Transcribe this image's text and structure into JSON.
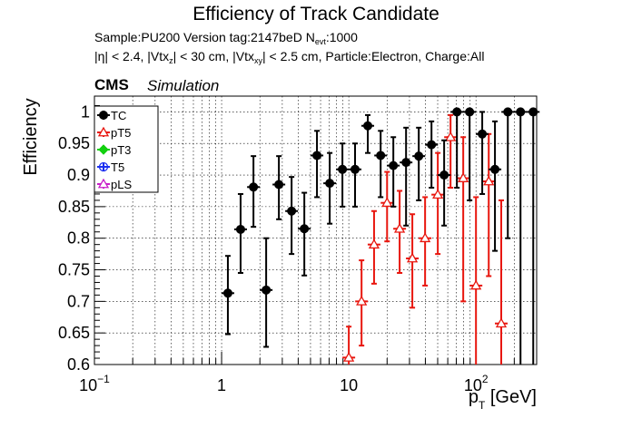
{
  "header": {
    "title": "Efficiency of Track Candidate",
    "sample_line": {
      "prefix": "Sample:PU200   Version tag:2147beD  N",
      "sub": "evt",
      "suffix": ":1000"
    },
    "cuts_line": {
      "p1": "|η| < 2.4, |Vtx",
      "s1": "z",
      "p2": "| < 30 cm, |Vtx",
      "s2": "xy",
      "p3": "| < 2.5 cm, Particle:Electron, Charge:All"
    },
    "cms_label": "CMS",
    "simulation_label": "Simulation"
  },
  "chart_data": {
    "type": "scatter",
    "x_scale": "log",
    "xlim": [
      0.1,
      300
    ],
    "ylim": [
      0.6,
      1.025
    ],
    "grid": true,
    "legend_position": "top-left",
    "xlabel": {
      "main": "p",
      "sub": "T",
      "rest": " [GeV]"
    },
    "ylabel": "Efficiency",
    "x_ticks": [
      {
        "value": 0.1,
        "base": "10",
        "exp": "−1"
      },
      {
        "value": 1,
        "base": "1",
        "exp": ""
      },
      {
        "value": 10,
        "base": "10",
        "exp": ""
      },
      {
        "value": 100,
        "base": "10",
        "exp": "2"
      }
    ],
    "y_ticks": [
      "0.6",
      "0.65",
      "0.7",
      "0.75",
      "0.8",
      "0.85",
      "0.9",
      "0.95",
      "1"
    ],
    "legend": [
      "TC",
      "pT5",
      "pT3",
      "T5",
      "pLS"
    ],
    "series": [
      {
        "name": "TC",
        "color": "#000000",
        "marker": "filled-circle",
        "points": [
          {
            "x": 1.12,
            "y": 0.713,
            "ylo": 0.648,
            "yhi": 0.772
          },
          {
            "x": 1.41,
            "y": 0.814,
            "ylo": 0.745,
            "yhi": 0.87
          },
          {
            "x": 1.78,
            "y": 0.881,
            "ylo": 0.818,
            "yhi": 0.93
          },
          {
            "x": 2.24,
            "y": 0.718,
            "ylo": 0.628,
            "yhi": 0.8
          },
          {
            "x": 2.82,
            "y": 0.885,
            "ylo": 0.83,
            "yhi": 0.93
          },
          {
            "x": 3.55,
            "y": 0.843,
            "ylo": 0.775,
            "yhi": 0.897
          },
          {
            "x": 4.47,
            "y": 0.815,
            "ylo": 0.741,
            "yhi": 0.872
          },
          {
            "x": 5.62,
            "y": 0.931,
            "ylo": 0.865,
            "yhi": 0.97
          },
          {
            "x": 7.08,
            "y": 0.887,
            "ylo": 0.823,
            "yhi": 0.935
          },
          {
            "x": 8.91,
            "y": 0.909,
            "ylo": 0.85,
            "yhi": 0.95
          },
          {
            "x": 11.2,
            "y": 0.909,
            "ylo": 0.85,
            "yhi": 0.95
          },
          {
            "x": 14.1,
            "y": 0.978,
            "ylo": 0.935,
            "yhi": 0.995
          },
          {
            "x": 17.8,
            "y": 0.931,
            "ylo": 0.865,
            "yhi": 0.97
          },
          {
            "x": 22.4,
            "y": 0.915,
            "ylo": 0.85,
            "yhi": 0.96
          },
          {
            "x": 28.2,
            "y": 0.92,
            "ylo": 0.82,
            "yhi": 0.975
          },
          {
            "x": 35.5,
            "y": 0.93,
            "ylo": 0.86,
            "yhi": 0.975
          },
          {
            "x": 44.7,
            "y": 0.948,
            "ylo": 0.88,
            "yhi": 0.985
          },
          {
            "x": 56.2,
            "y": 0.9,
            "ylo": 0.82,
            "yhi": 0.955
          },
          {
            "x": 70.8,
            "y": 1.0,
            "ylo": 0.88,
            "yhi": 1.0
          },
          {
            "x": 89.1,
            "y": 1.0,
            "ylo": 0.86,
            "yhi": 1.0
          },
          {
            "x": 112,
            "y": 0.965,
            "ylo": 0.87,
            "yhi": 1.0
          },
          {
            "x": 141,
            "y": 0.909,
            "ylo": 0.78,
            "yhi": 0.985
          },
          {
            "x": 178,
            "y": 1.0,
            "ylo": 0.8,
            "yhi": 1.0
          },
          {
            "x": 224,
            "y": 1.0,
            "ylo": 0.6,
            "yhi": 1.0
          },
          {
            "x": 282,
            "y": 1.0,
            "ylo": 0.6,
            "yhi": 1.0
          }
        ]
      },
      {
        "name": "pT5",
        "color": "#e8160e",
        "marker": "open-triangle",
        "points": [
          {
            "x": 10.0,
            "y": 0.611,
            "ylo": 0.56,
            "yhi": 0.66
          },
          {
            "x": 12.6,
            "y": 0.7,
            "ylo": 0.63,
            "yhi": 0.765
          },
          {
            "x": 15.8,
            "y": 0.79,
            "ylo": 0.728,
            "yhi": 0.843
          },
          {
            "x": 20.0,
            "y": 0.856,
            "ylo": 0.795,
            "yhi": 0.905
          },
          {
            "x": 25.1,
            "y": 0.815,
            "ylo": 0.745,
            "yhi": 0.875
          },
          {
            "x": 31.6,
            "y": 0.768,
            "ylo": 0.69,
            "yhi": 0.838
          },
          {
            "x": 39.8,
            "y": 0.8,
            "ylo": 0.725,
            "yhi": 0.865
          },
          {
            "x": 50.1,
            "y": 0.869,
            "ylo": 0.775,
            "yhi": 0.935
          },
          {
            "x": 63.1,
            "y": 0.96,
            "ylo": 0.88,
            "yhi": 0.995
          },
          {
            "x": 79.4,
            "y": 0.895,
            "ylo": 0.7,
            "yhi": 0.96
          },
          {
            "x": 100,
            "y": 0.725,
            "ylo": 0.6,
            "yhi": 0.865
          },
          {
            "x": 126,
            "y": 0.89,
            "ylo": 0.74,
            "yhi": 0.965
          },
          {
            "x": 158,
            "y": 0.665,
            "ylo": 0.6,
            "yhi": 0.86
          }
        ]
      }
    ]
  }
}
